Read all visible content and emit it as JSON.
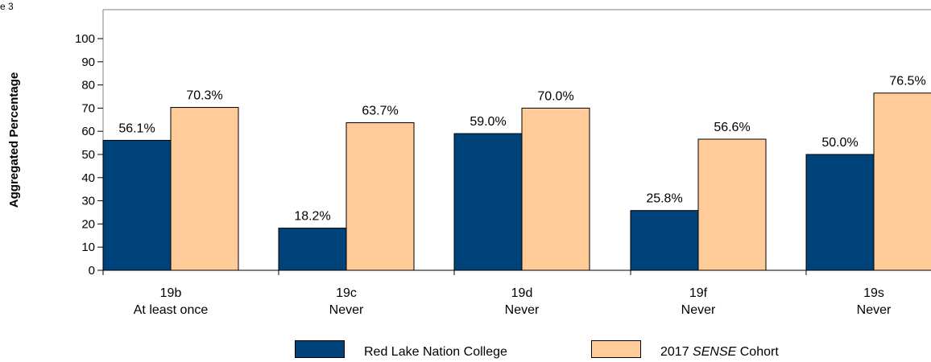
{
  "page": {
    "corner_label": "e 3"
  },
  "chart_data": {
    "type": "bar",
    "ylabel": "Aggregated Percentage",
    "ylim": [
      0,
      100
    ],
    "yticks": [
      0,
      10,
      20,
      30,
      40,
      50,
      60,
      70,
      80,
      90,
      100
    ],
    "categories": [
      [
        "19b",
        "At least once"
      ],
      [
        "19c",
        "Never"
      ],
      [
        "19d",
        "Never"
      ],
      [
        "19f",
        "Never"
      ],
      [
        "19s",
        "Never"
      ]
    ],
    "series": [
      {
        "name": "Red Lake Nation College",
        "values": [
          56.1,
          18.2,
          59.0,
          25.8,
          50.0
        ],
        "labels": [
          "56.1%",
          "18.2%",
          "59.0%",
          "25.8%",
          "50.0%"
        ],
        "color": "#00427A"
      },
      {
        "name": "2017 SENSE Cohort",
        "values": [
          70.3,
          63.7,
          70.0,
          56.6,
          76.5
        ],
        "labels": [
          "70.3%",
          "63.7%",
          "70.0%",
          "56.6%",
          "76.5%"
        ],
        "color": "#FFCC99"
      }
    ],
    "legend": {
      "placement": "bottom-center",
      "items": [
        {
          "name": "Red Lake Nation College",
          "text": "Red Lake Nation College"
        },
        {
          "name": "2017 SENSE Cohort",
          "prefix": "2017 ",
          "italic": "SENSE",
          "suffix": " Cohort"
        }
      ]
    },
    "grid": false
  }
}
